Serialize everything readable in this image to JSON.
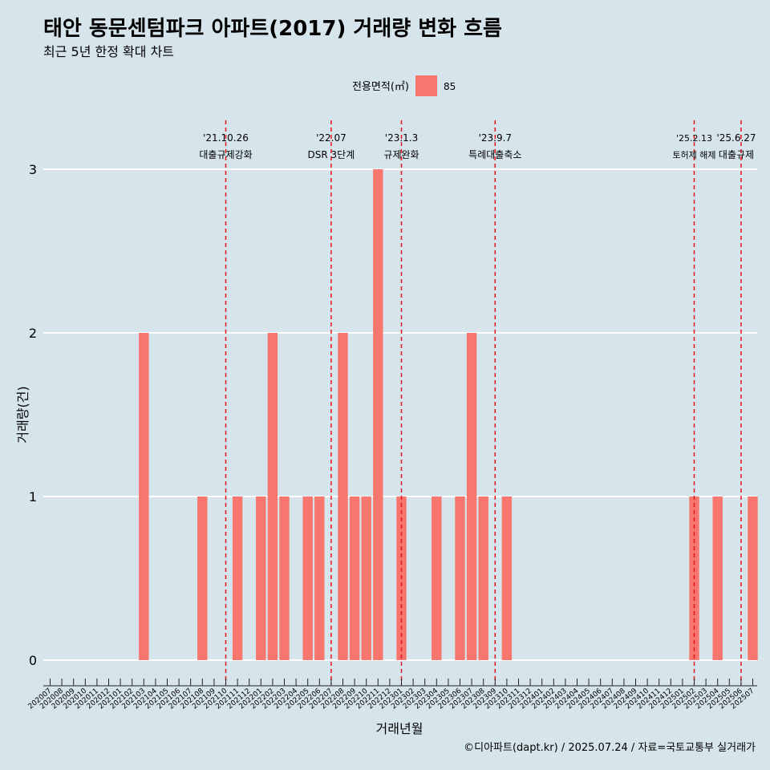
{
  "chart_data": {
    "type": "bar",
    "title": "태안 동문센텀파크 아파트(2017) 거래량 변화 흐름",
    "subtitle": "최근 5년 한정 확대 차트",
    "xlabel": "거래년월",
    "ylabel": "거래량(건)",
    "ylim": [
      0,
      3
    ],
    "yticks": [
      "0",
      "1",
      "2",
      "3"
    ],
    "legend": {
      "title": "전용면적(㎡)",
      "entries": [
        {
          "label": "85",
          "color": "#f8766d"
        }
      ],
      "placement": "top"
    },
    "categories": [
      "202007",
      "202008",
      "202009",
      "202010",
      "202011",
      "202012",
      "202101",
      "202102",
      "202103",
      "202104",
      "202105",
      "202106",
      "202107",
      "202108",
      "202109",
      "202110",
      "202111",
      "202112",
      "202201",
      "202202",
      "202203",
      "202204",
      "202205",
      "202206",
      "202207",
      "202208",
      "202209",
      "202210",
      "202211",
      "202212",
      "202301",
      "202302",
      "202303",
      "202304",
      "202305",
      "202306",
      "202307",
      "202308",
      "202309",
      "202310",
      "202311",
      "202312",
      "202401",
      "202402",
      "202403",
      "202404",
      "202405",
      "202406",
      "202407",
      "202408",
      "202409",
      "202410",
      "202411",
      "202412",
      "202501",
      "202502",
      "202503",
      "202504",
      "202505",
      "202506",
      "202507"
    ],
    "tick_labels": [
      "202007",
      "202008",
      "202009",
      "202010",
      "202011",
      "202012",
      "202101",
      "202102",
      "202103",
      "202104",
      "202105",
      "202106",
      "202107",
      "202108",
      "202109",
      "202110",
      "202111",
      "202112",
      "202201",
      "202202",
      "202203",
      "202204",
      "202205",
      "202206",
      "202207",
      "202208",
      "202209",
      "202210",
      "202211",
      "202212",
      "202301",
      "202302",
      "202303",
      "202304",
      "202305",
      "202306",
      "202307",
      "202308",
      "202309",
      "202310",
      "202311",
      "202312",
      "202401",
      "202402",
      "202403",
      "202404",
      "202405",
      "202406",
      "202407",
      "202408",
      "202409",
      "202410",
      "202411",
      "202412",
      "202501",
      "202502",
      "202503",
      "202504",
      "202505",
      "202506",
      "202507"
    ],
    "series": [
      {
        "name": "85",
        "color": "#f8766d",
        "values": [
          0,
          0,
          0,
          0,
          0,
          0,
          0,
          0,
          2,
          0,
          0,
          0,
          0,
          1,
          0,
          0,
          1,
          0,
          1,
          2,
          1,
          0,
          1,
          1,
          0,
          2,
          1,
          1,
          3,
          0,
          1,
          0,
          0,
          1,
          0,
          1,
          2,
          1,
          0,
          1,
          0,
          0,
          0,
          0,
          0,
          0,
          0,
          0,
          0,
          0,
          0,
          0,
          0,
          0,
          0,
          1,
          0,
          1,
          0,
          0,
          1
        ]
      }
    ],
    "events": [
      {
        "x": "202110",
        "date": "'21.10.26",
        "label": "대출규제강화"
      },
      {
        "x": "202207",
        "date": "'22.07",
        "label": "DSR 3단계"
      },
      {
        "x": "202301",
        "date": "'23.1.3",
        "label": "규제완화"
      },
      {
        "x": "202309",
        "date": "'23.9.7",
        "label": "특례대출축소"
      },
      {
        "x": "202502",
        "date": "'25.2.13",
        "label": "토허제 해제"
      },
      {
        "x": "202506",
        "date": "'25.6.27",
        "label": "대출규제"
      }
    ],
    "event_line_color": "#e8141c",
    "grid": true
  },
  "caption": "©디아파트(dapt.kr) / 2025.07.24 / 자료=국토교통부 실거래가"
}
